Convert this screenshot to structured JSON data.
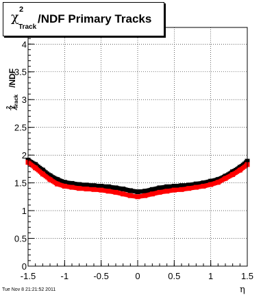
{
  "title": {
    "chi_symbol": "χ",
    "superscript": "2",
    "subscript": "Track",
    "main": "/NDF  Primary Tracks"
  },
  "ylabel": {
    "chi_symbol": "χ",
    "superscript": "2",
    "subscript": "Track",
    "suffix": "/NDF"
  },
  "xlabel": "η",
  "timestamp": "Tue Nov  8 21:21:52 2011",
  "colors": {
    "series_1": "#000000",
    "series_2": "#ff0000",
    "grid": "#000000",
    "background": "#ffffff"
  },
  "chart_data": {
    "type": "scatter",
    "xlim": [
      -1.5,
      1.5
    ],
    "ylim": [
      0,
      4.3
    ],
    "grid": true,
    "x_ticks": [
      "-1.5",
      "-1",
      "-0.5",
      "0",
      "0.5",
      "1",
      "1.5"
    ],
    "x_tick_values": [
      -1.5,
      -1,
      -0.5,
      0,
      0.5,
      1,
      1.5
    ],
    "y_ticks": [
      "0",
      "0.5",
      "1",
      "1.5",
      "2",
      "2.5",
      "3",
      "3.5",
      "4"
    ],
    "y_tick_values": [
      0,
      0.5,
      1,
      1.5,
      2,
      2.5,
      3,
      3.5,
      4
    ],
    "x": [
      -1.5,
      -1.4,
      -1.3,
      -1.2,
      -1.1,
      -1.0,
      -0.9,
      -0.8,
      -0.7,
      -0.6,
      -0.5,
      -0.4,
      -0.3,
      -0.2,
      -0.1,
      0.0,
      0.1,
      0.2,
      0.3,
      0.4,
      0.5,
      0.6,
      0.7,
      0.8,
      0.9,
      1.0,
      1.1,
      1.2,
      1.3,
      1.4,
      1.5
    ],
    "series": [
      {
        "color": "#000000",
        "values": [
          1.91,
          1.83,
          1.73,
          1.63,
          1.56,
          1.51,
          1.49,
          1.47,
          1.46,
          1.45,
          1.44,
          1.43,
          1.41,
          1.39,
          1.36,
          1.34,
          1.35,
          1.38,
          1.41,
          1.43,
          1.44,
          1.45,
          1.46,
          1.48,
          1.5,
          1.53,
          1.56,
          1.62,
          1.7,
          1.78,
          1.89
        ]
      },
      {
        "color": "#ff0000",
        "values": [
          1.87,
          1.77,
          1.66,
          1.56,
          1.48,
          1.44,
          1.42,
          1.4,
          1.39,
          1.38,
          1.37,
          1.35,
          1.33,
          1.3,
          1.27,
          1.25,
          1.27,
          1.3,
          1.33,
          1.35,
          1.37,
          1.38,
          1.4,
          1.42,
          1.44,
          1.47,
          1.51,
          1.58,
          1.65,
          1.73,
          1.83
        ]
      }
    ]
  }
}
